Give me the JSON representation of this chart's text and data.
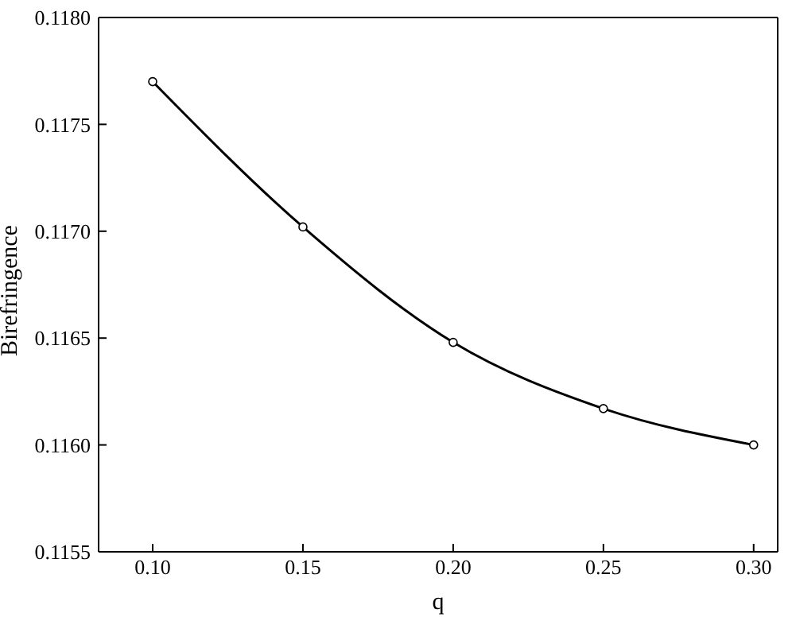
{
  "chart_data": {
    "type": "line",
    "xlabel": "q",
    "ylabel": "Birefringence",
    "x": [
      0.1,
      0.15,
      0.2,
      0.25,
      0.3
    ],
    "series": [
      {
        "color": "#000000",
        "values": [
          0.1177,
          0.11702,
          0.11648,
          0.11617,
          0.116
        ]
      }
    ],
    "xlim": [
      0.082,
      0.308
    ],
    "xticks": [
      {
        "value": 0.1,
        "label": "0.10"
      },
      {
        "value": 0.15,
        "label": "0.15"
      },
      {
        "value": 0.2,
        "label": "0.20"
      },
      {
        "value": 0.25,
        "label": "0.25"
      },
      {
        "value": 0.3,
        "label": "0.30"
      }
    ],
    "ylim": [
      0.1155,
      0.118
    ],
    "yticks": [
      {
        "value": 0.1155,
        "label": "0.1155"
      },
      {
        "value": 0.116,
        "label": "0.1160"
      },
      {
        "value": 0.1165,
        "label": "0.1165"
      },
      {
        "value": 0.117,
        "label": "0.1170"
      },
      {
        "value": 0.1175,
        "label": "0.1175"
      },
      {
        "value": 0.118,
        "label": "0.1180"
      }
    ],
    "marker": "circle",
    "line_style": "solid"
  }
}
